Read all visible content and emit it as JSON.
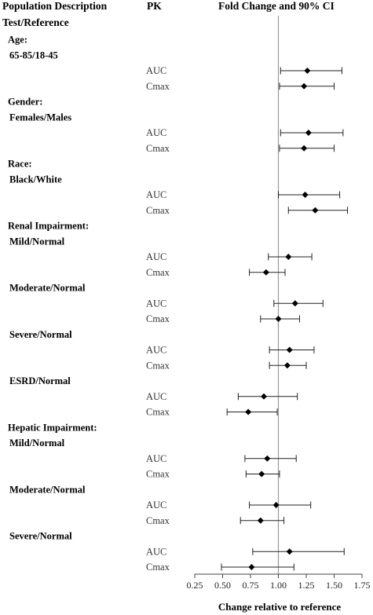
{
  "header": {
    "col1_line1": "Population Description",
    "col1_line2": "Test/Reference",
    "col2": "PK",
    "col3": "Fold Change and 90% CI"
  },
  "groups": [
    {
      "label": "Age:",
      "row": 0
    },
    {
      "label": "65-85/18-45",
      "row": 1
    },
    {
      "label": "Gender:",
      "row": 4
    },
    {
      "label": "Females/Males",
      "row": 5
    },
    {
      "label": "Race:",
      "row": 8
    },
    {
      "label": "Black/White",
      "row": 9
    },
    {
      "label": "Renal Impairment:",
      "row": 12
    },
    {
      "label": "Mild/Normal",
      "row": 13
    },
    {
      "label": "Moderate/Normal",
      "row": 16
    },
    {
      "label": "Severe/Normal",
      "row": 19
    },
    {
      "label": "ESRD/Normal",
      "row": 22
    },
    {
      "label": "Hepatic Impairment:",
      "row": 25
    },
    {
      "label": "Mild/Normal",
      "row": 26
    },
    {
      "label": "Moderate/Normal",
      "row": 29
    },
    {
      "label": "Severe/Normal",
      "row": 32
    }
  ],
  "chart_data": {
    "type": "scatter",
    "title": "Fold Change and 90% CI",
    "xlabel": "Change relative to reference",
    "xlim": [
      0.25,
      1.75
    ],
    "x_ticks": [
      "0.25",
      "0.50",
      "0.75",
      "1.00",
      "1.25",
      "1.50",
      "1.75"
    ],
    "reference_line": 1.0,
    "points": [
      {
        "group": "65-85/18-45",
        "pk": "AUC",
        "row": 2,
        "estimate": 1.26,
        "lower": 1.02,
        "upper": 1.57
      },
      {
        "group": "65-85/18-45",
        "pk": "Cmax",
        "row": 3,
        "estimate": 1.23,
        "lower": 1.01,
        "upper": 1.5
      },
      {
        "group": "Females/Males",
        "pk": "AUC",
        "row": 6,
        "estimate": 1.27,
        "lower": 1.02,
        "upper": 1.58
      },
      {
        "group": "Females/Males",
        "pk": "Cmax",
        "row": 7,
        "estimate": 1.23,
        "lower": 1.01,
        "upper": 1.5
      },
      {
        "group": "Black/White",
        "pk": "AUC",
        "row": 10,
        "estimate": 1.24,
        "lower": 1.0,
        "upper": 1.55
      },
      {
        "group": "Black/White",
        "pk": "Cmax",
        "row": 11,
        "estimate": 1.33,
        "lower": 1.09,
        "upper": 1.62
      },
      {
        "group": "Renal Mild/Normal",
        "pk": "AUC",
        "row": 14,
        "estimate": 1.09,
        "lower": 0.91,
        "upper": 1.3
      },
      {
        "group": "Renal Mild/Normal",
        "pk": "Cmax",
        "row": 15,
        "estimate": 0.89,
        "lower": 0.74,
        "upper": 1.06
      },
      {
        "group": "Renal Moderate/Normal",
        "pk": "AUC",
        "row": 17,
        "estimate": 1.15,
        "lower": 0.96,
        "upper": 1.4
      },
      {
        "group": "Renal Moderate/Normal",
        "pk": "Cmax",
        "row": 18,
        "estimate": 1.0,
        "lower": 0.84,
        "upper": 1.19
      },
      {
        "group": "Renal Severe/Normal",
        "pk": "AUC",
        "row": 20,
        "estimate": 1.1,
        "lower": 0.92,
        "upper": 1.32
      },
      {
        "group": "Renal Severe/Normal",
        "pk": "Cmax",
        "row": 21,
        "estimate": 1.08,
        "lower": 0.92,
        "upper": 1.25
      },
      {
        "group": "ESRD/Normal",
        "pk": "AUC",
        "row": 23,
        "estimate": 0.87,
        "lower": 0.64,
        "upper": 1.17
      },
      {
        "group": "ESRD/Normal",
        "pk": "Cmax",
        "row": 24,
        "estimate": 0.73,
        "lower": 0.54,
        "upper": 0.99
      },
      {
        "group": "Hepatic Mild/Normal",
        "pk": "AUC",
        "row": 27,
        "estimate": 0.9,
        "lower": 0.7,
        "upper": 1.16
      },
      {
        "group": "Hepatic Mild/Normal",
        "pk": "Cmax",
        "row": 28,
        "estimate": 0.85,
        "lower": 0.71,
        "upper": 1.01
      },
      {
        "group": "Hepatic Moderate/Normal",
        "pk": "AUC",
        "row": 30,
        "estimate": 0.98,
        "lower": 0.74,
        "upper": 1.29
      },
      {
        "group": "Hepatic Moderate/Normal",
        "pk": "Cmax",
        "row": 31,
        "estimate": 0.84,
        "lower": 0.66,
        "upper": 1.05
      },
      {
        "group": "Hepatic Severe/Normal",
        "pk": "AUC",
        "row": 33,
        "estimate": 1.1,
        "lower": 0.77,
        "upper": 1.59
      },
      {
        "group": "Hepatic Severe/Normal",
        "pk": "Cmax",
        "row": 34,
        "estimate": 0.76,
        "lower": 0.49,
        "upper": 1.14
      }
    ]
  }
}
